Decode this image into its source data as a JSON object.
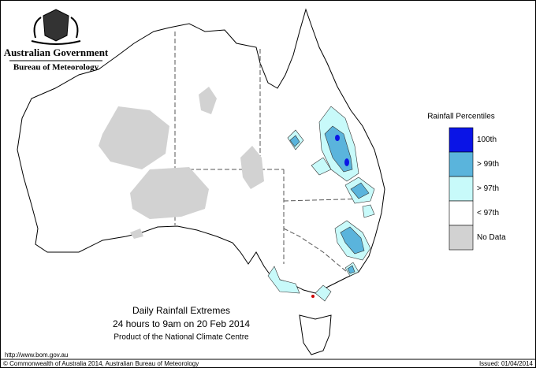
{
  "header": {
    "agency": "Australian Government",
    "bureau": "Bureau of Meteorology"
  },
  "legend": {
    "title": "Rainfall Percentiles",
    "items": [
      {
        "label": "100th",
        "color": "#0a14e6"
      },
      {
        "label": "> 99th",
        "color": "#5ab4dc"
      },
      {
        "label": "> 97th",
        "color": "#c8fafa"
      },
      {
        "label": "< 97th",
        "color": "#ffffff"
      },
      {
        "label": "No Data",
        "color": "#d2d2d2"
      }
    ]
  },
  "caption": {
    "title": "Daily Rainfall Extremes",
    "period": "24 hours to 9am on 20 Feb 2014",
    "product": "Product of the National Climate Centre"
  },
  "footer": {
    "url": "http://www.bom.gov.au",
    "copyright": "© Commonwealth of Australia 2014, Australian Bureau of Meteorology",
    "issued": "Issued: 01/04/2014"
  }
}
